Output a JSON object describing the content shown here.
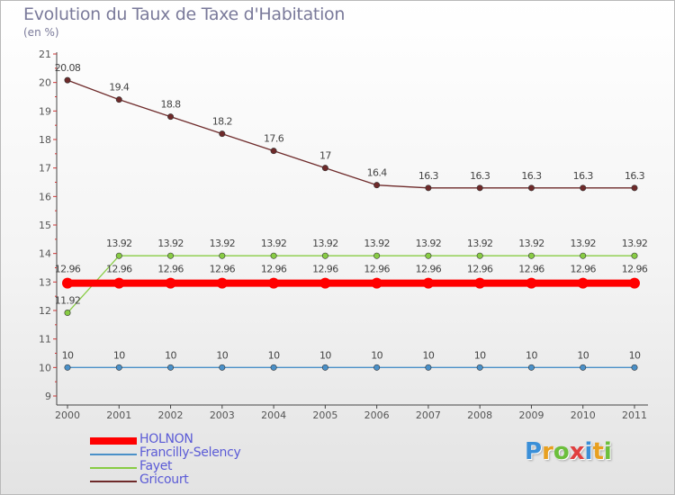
{
  "header": {
    "title": "Evolution du Taux de Taxe d'Habitation",
    "unit": "(en %)"
  },
  "logo": {
    "text": "Proxiti",
    "letters": [
      {
        "ch": "P",
        "color": "#3a8fd8"
      },
      {
        "ch": "r",
        "color": "#e8a020"
      },
      {
        "ch": "o",
        "color": "#6cbf3c"
      },
      {
        "ch": "x",
        "color": "#e04040"
      },
      {
        "ch": "i",
        "color": "#3a8fd8"
      },
      {
        "ch": "t",
        "color": "#e8a020"
      },
      {
        "ch": "i",
        "color": "#6cbf3c"
      }
    ]
  },
  "chart_data": {
    "type": "line",
    "title": "Evolution du Taux de Taxe d'Habitation",
    "ylabel": "(en %)",
    "xlabel": "",
    "x": [
      "2000",
      "2001",
      "2002",
      "2003",
      "2004",
      "2005",
      "2006",
      "2007",
      "2008",
      "2009",
      "2010",
      "2011"
    ],
    "ylim": [
      9,
      21
    ],
    "yticks": [
      9,
      10,
      11,
      12,
      13,
      14,
      15,
      16,
      17,
      18,
      19,
      20,
      21
    ],
    "grid": false,
    "legend_position": "bottom-left",
    "series": [
      {
        "name": "HOLNON",
        "color": "#ff0000",
        "values": [
          12.96,
          12.96,
          12.96,
          12.96,
          12.96,
          12.96,
          12.96,
          12.96,
          12.96,
          12.96,
          12.96,
          12.96
        ],
        "labels": [
          "12.96",
          "12.96",
          "12.96",
          "12.96",
          "12.96",
          "12.96",
          "12.96",
          "12.96",
          "12.96",
          "12.96",
          "12.96",
          "12.96"
        ]
      },
      {
        "name": "Francilly-Selency",
        "color": "#4a90c8",
        "values": [
          10,
          10,
          10,
          10,
          10,
          10,
          10,
          10,
          10,
          10,
          10,
          10
        ],
        "labels": [
          "10",
          "10",
          "10",
          "10",
          "10",
          "10",
          "10",
          "10",
          "10",
          "10",
          "10",
          "10"
        ]
      },
      {
        "name": "Fayet",
        "color": "#88cc44",
        "values": [
          11.92,
          13.92,
          13.92,
          13.92,
          13.92,
          13.92,
          13.92,
          13.92,
          13.92,
          13.92,
          13.92,
          13.92
        ],
        "labels": [
          "11.92",
          "13.92",
          "13.92",
          "13.92",
          "13.92",
          "13.92",
          "13.92",
          "13.92",
          "13.92",
          "13.92",
          "13.92",
          "13.92"
        ]
      },
      {
        "name": "Gricourt",
        "color": "#6e2a2a",
        "values": [
          20.08,
          19.4,
          18.8,
          18.2,
          17.6,
          17,
          16.4,
          16.3,
          16.3,
          16.3,
          16.3,
          16.3
        ],
        "labels": [
          "20.08",
          "19.4",
          "18.8",
          "18.2",
          "17.6",
          "17",
          "16.4",
          "16.3",
          "16.3",
          "16.3",
          "16.3",
          "16.3"
        ]
      }
    ]
  }
}
